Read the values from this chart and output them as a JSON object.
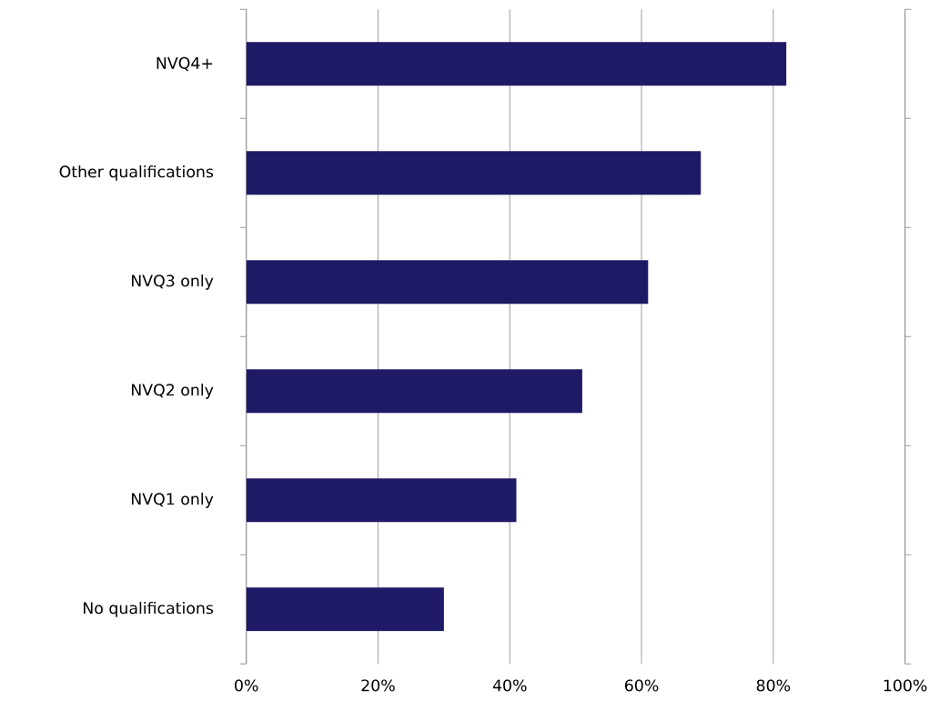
{
  "chart_data": {
    "type": "bar",
    "orientation": "horizontal",
    "categories": [
      "NVQ4+",
      "Other qualifications",
      "NVQ3 only",
      "NVQ2 only",
      "NVQ1 only",
      "No qualifications"
    ],
    "values": [
      82,
      69,
      61,
      51,
      41,
      30
    ],
    "color": "#1f1a66",
    "xlim": [
      0,
      100
    ],
    "xticks": [
      {
        "value": 0,
        "label": "0%"
      },
      {
        "value": 20,
        "label": "20%"
      },
      {
        "value": 40,
        "label": "40%"
      },
      {
        "value": 60,
        "label": "60%"
      },
      {
        "value": 80,
        "label": "80%"
      },
      {
        "value": 100,
        "label": "100%"
      }
    ],
    "grid": "x"
  }
}
